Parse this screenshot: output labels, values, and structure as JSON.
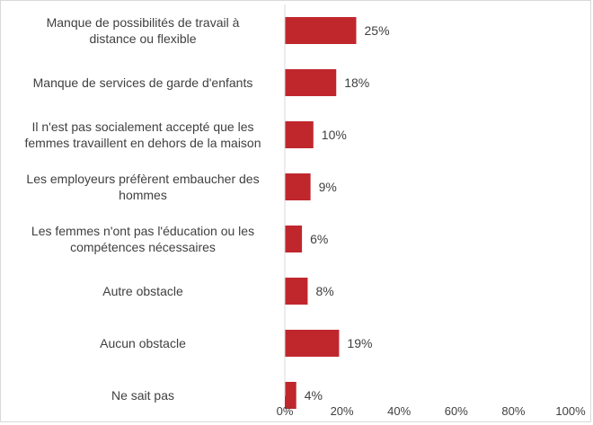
{
  "chart_data": {
    "type": "bar",
    "orientation": "horizontal",
    "categories": [
      [
        "Manque de possibilités de travail à",
        "distance ou flexible"
      ],
      [
        "Manque de services de garde d'enfants"
      ],
      [
        "Il n'est pas socialement accepté que les",
        "femmes travaillent en dehors de la maison"
      ],
      [
        "Les employeurs préfèrent embaucher des",
        "hommes"
      ],
      [
        "Les femmes n'ont pas l'éducation ou les",
        "compétences nécessaires"
      ],
      [
        "Autre obstacle"
      ],
      [
        "Aucun obstacle"
      ],
      [
        "Ne sait pas"
      ]
    ],
    "values": [
      25,
      18,
      10,
      9,
      6,
      8,
      19,
      4
    ],
    "value_labels": [
      "25%",
      "18%",
      "10%",
      "9%",
      "6%",
      "8%",
      "19%",
      "4%"
    ],
    "xlim": [
      0,
      100
    ],
    "xticks": [
      0,
      20,
      40,
      60,
      80,
      100
    ],
    "xtick_labels": [
      "0%",
      "20%",
      "40%",
      "60%",
      "80%",
      "100%"
    ],
    "bar_color": "#c0272d",
    "axis_color": "#d9d9d9",
    "grid": false,
    "legend": "none"
  }
}
